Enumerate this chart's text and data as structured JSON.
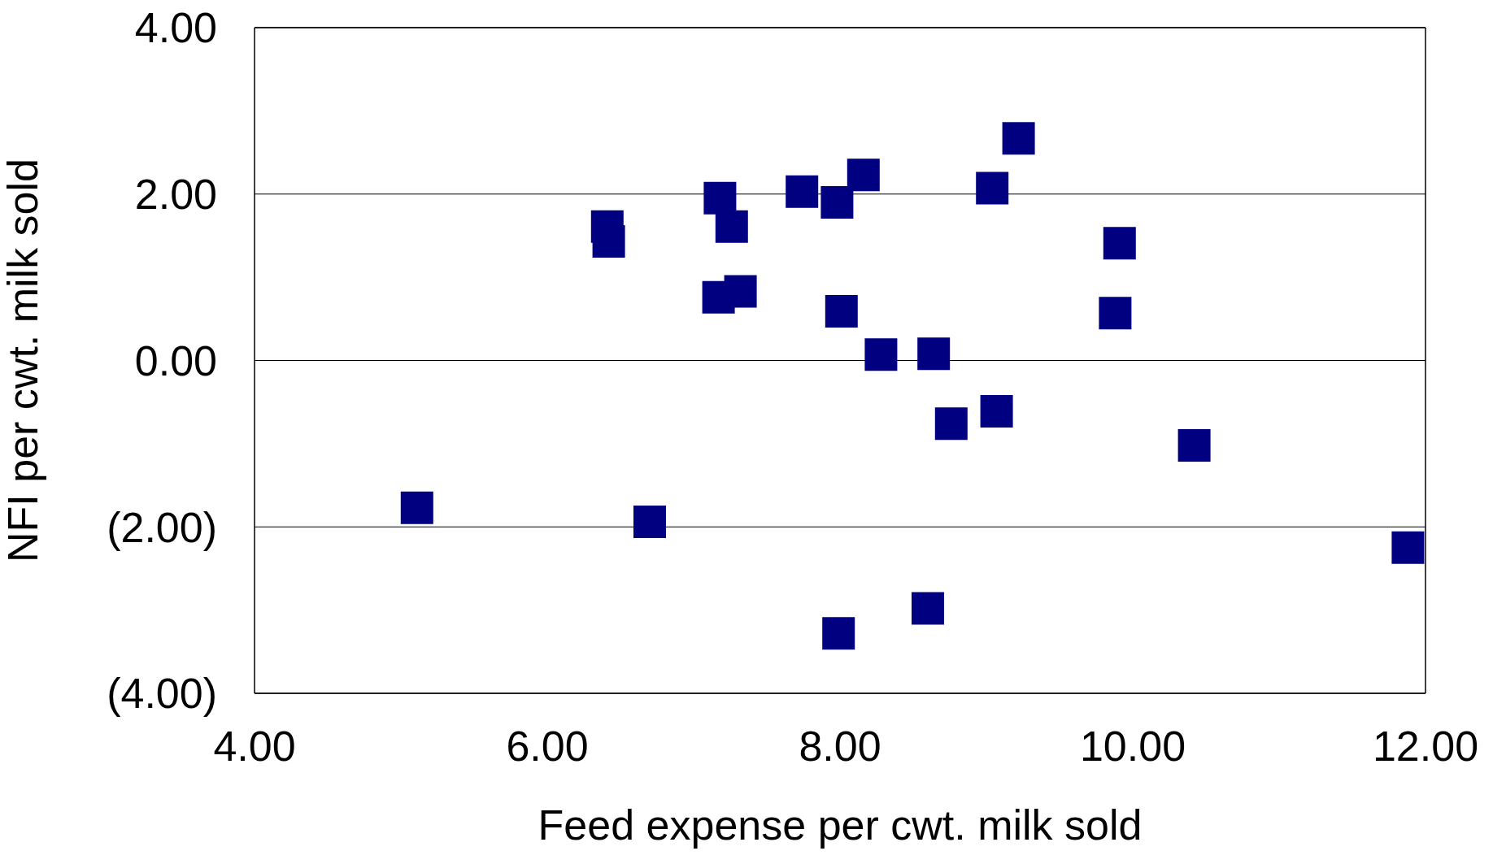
{
  "chart_data": {
    "type": "scatter",
    "xlabel": "Feed expense per cwt. milk sold",
    "ylabel": "NFI per cwt. milk sold",
    "xlim": [
      4,
      12
    ],
    "xticks": [
      {
        "value": 4,
        "label": "4.00"
      },
      {
        "value": 6,
        "label": "6.00"
      },
      {
        "value": 8,
        "label": "8.00"
      },
      {
        "value": 10,
        "label": "10.00"
      },
      {
        "value": 12,
        "label": "12.00"
      }
    ],
    "ylim": [
      -4,
      4
    ],
    "yticks": [
      {
        "value": -4,
        "label": "(4.00)"
      },
      {
        "value": -2,
        "label": "(2.00)"
      },
      {
        "value": 0,
        "label": "0.00"
      },
      {
        "value": 2,
        "label": "2.00"
      },
      {
        "value": 4,
        "label": "4.00"
      }
    ],
    "grid": "y",
    "marker": "square",
    "legend": false,
    "series": [
      {
        "color": "#000080",
        "x": [
          6.41,
          6.42,
          7.18,
          7.26,
          7.17,
          7.32,
          7.74,
          7.98,
          8.16,
          8.01,
          8.28,
          8.64,
          9.22,
          9.04,
          9.91,
          9.88,
          8.76,
          9.07,
          10.42,
          5.11,
          6.7,
          11.88,
          8.6,
          7.99
        ],
        "values": [
          1.61,
          1.43,
          1.95,
          1.61,
          0.76,
          0.83,
          2.03,
          1.9,
          2.23,
          0.59,
          0.07,
          0.08,
          2.67,
          2.07,
          1.41,
          0.57,
          -0.76,
          -0.61,
          -1.02,
          -1.77,
          -1.94,
          -2.25,
          -2.98,
          -3.28
        ]
      }
    ]
  }
}
